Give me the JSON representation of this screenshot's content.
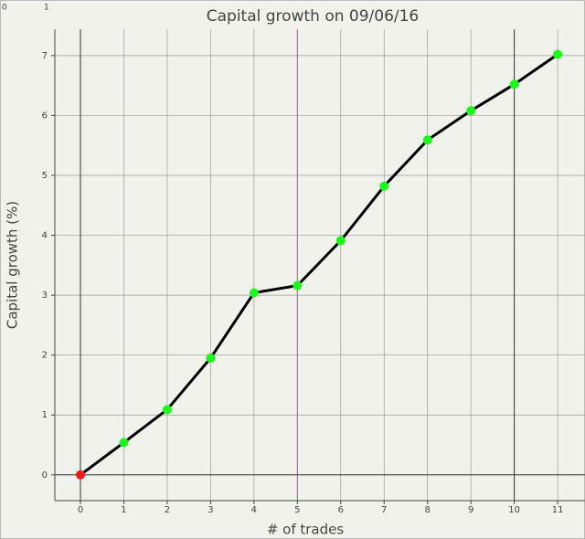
{
  "corner_labels": [
    "0",
    "1"
  ],
  "chart_data": {
    "type": "line",
    "title": "Capital growth on 09/06/16",
    "xlabel": "# of trades",
    "ylabel": "Capital growth (%)",
    "x": [
      0,
      1,
      2,
      3,
      4,
      5,
      6,
      7,
      8,
      9,
      10,
      11
    ],
    "series": [
      {
        "color": "#000000",
        "marker_colors": [
          "#ff1a1a",
          "#1aff1a",
          "#1aff1a",
          "#1aff1a",
          "#1aff1a",
          "#1aff1a",
          "#1aff1a",
          "#1aff1a",
          "#1aff1a",
          "#1aff1a",
          "#1aff1a",
          "#1aff1a"
        ],
        "values": [
          0,
          0.54,
          1.09,
          1.95,
          3.04,
          3.16,
          3.91,
          4.82,
          5.59,
          6.08,
          6.52,
          7.02
        ]
      }
    ],
    "vlines": [
      {
        "x": 0,
        "color": "#333333"
      },
      {
        "x": 5,
        "color": "#e05050"
      },
      {
        "x": 10,
        "color": "#333333"
      }
    ],
    "xlim": [
      -0.59,
      11.63
    ],
    "ylim": [
      -0.43,
      7.44
    ],
    "xticks": [
      0,
      1,
      2,
      3,
      4,
      5,
      6,
      7,
      8,
      9,
      10,
      11
    ],
    "yticks": [
      0,
      1,
      2,
      3,
      4,
      5,
      6,
      7
    ],
    "grid": true
  }
}
